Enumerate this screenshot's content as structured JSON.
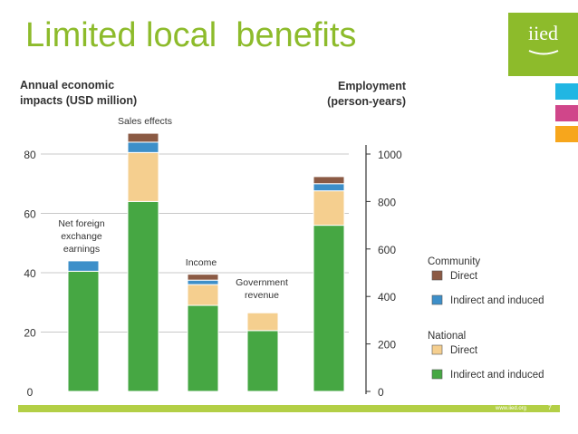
{
  "slide": {
    "title": "Limited local  benefits",
    "logo_text": "iied",
    "footer_url": "www.iied.org",
    "page_number": "7"
  },
  "colors": {
    "community_direct": "#8b5a44",
    "community_indirect": "#3d8fc9",
    "national_direct": "#f5cf8f",
    "national_indirect": "#46a743",
    "accent_green": "#8dbb2b",
    "tab_cyan": "#21b6e3",
    "tab_magenta": "#d0468a",
    "tab_orange": "#f7a61c"
  },
  "chart_data": {
    "type": "bar",
    "stacked": true,
    "left_axis": {
      "title_line1": "Annual economic",
      "title_line2": "impacts (USD million)",
      "ylim": [
        0,
        80
      ],
      "ticks": [
        0,
        20,
        40,
        60,
        80
      ],
      "grid": true
    },
    "right_axis": {
      "title_line1": "Employment",
      "title_line2": "(person-years)",
      "ylim": [
        0,
        1000
      ],
      "ticks": [
        0,
        200,
        400,
        600,
        800,
        1000
      ]
    },
    "categories": [
      "Net foreign exchange earnings",
      "Sales effects",
      "Income",
      "Government revenue",
      "Employment"
    ],
    "category_labels": [
      [
        "Net foreign",
        "exchange",
        "earnings"
      ],
      [
        "Sales effects"
      ],
      [
        "Income"
      ],
      [
        "Government",
        "revenue"
      ],
      []
    ],
    "series": [
      {
        "name": "Indirect and induced",
        "group": "National",
        "values": [
          40.5,
          64,
          29,
          20.5,
          700
        ]
      },
      {
        "name": "Direct",
        "group": "National",
        "values": [
          0,
          16.5,
          7,
          6,
          145
        ]
      },
      {
        "name": "Indirect and induced",
        "group": "Community",
        "values": [
          3.5,
          3.5,
          1.5,
          0,
          30
        ]
      },
      {
        "name": "Direct",
        "group": "Community",
        "values": [
          0,
          3,
          2,
          0,
          30
        ]
      }
    ],
    "legend": {
      "position": "right",
      "groups": [
        {
          "title": "Community",
          "items": [
            "Direct",
            "Indirect and induced"
          ]
        },
        {
          "title": "National",
          "items": [
            "Direct",
            "Indirect and induced"
          ]
        }
      ]
    }
  }
}
